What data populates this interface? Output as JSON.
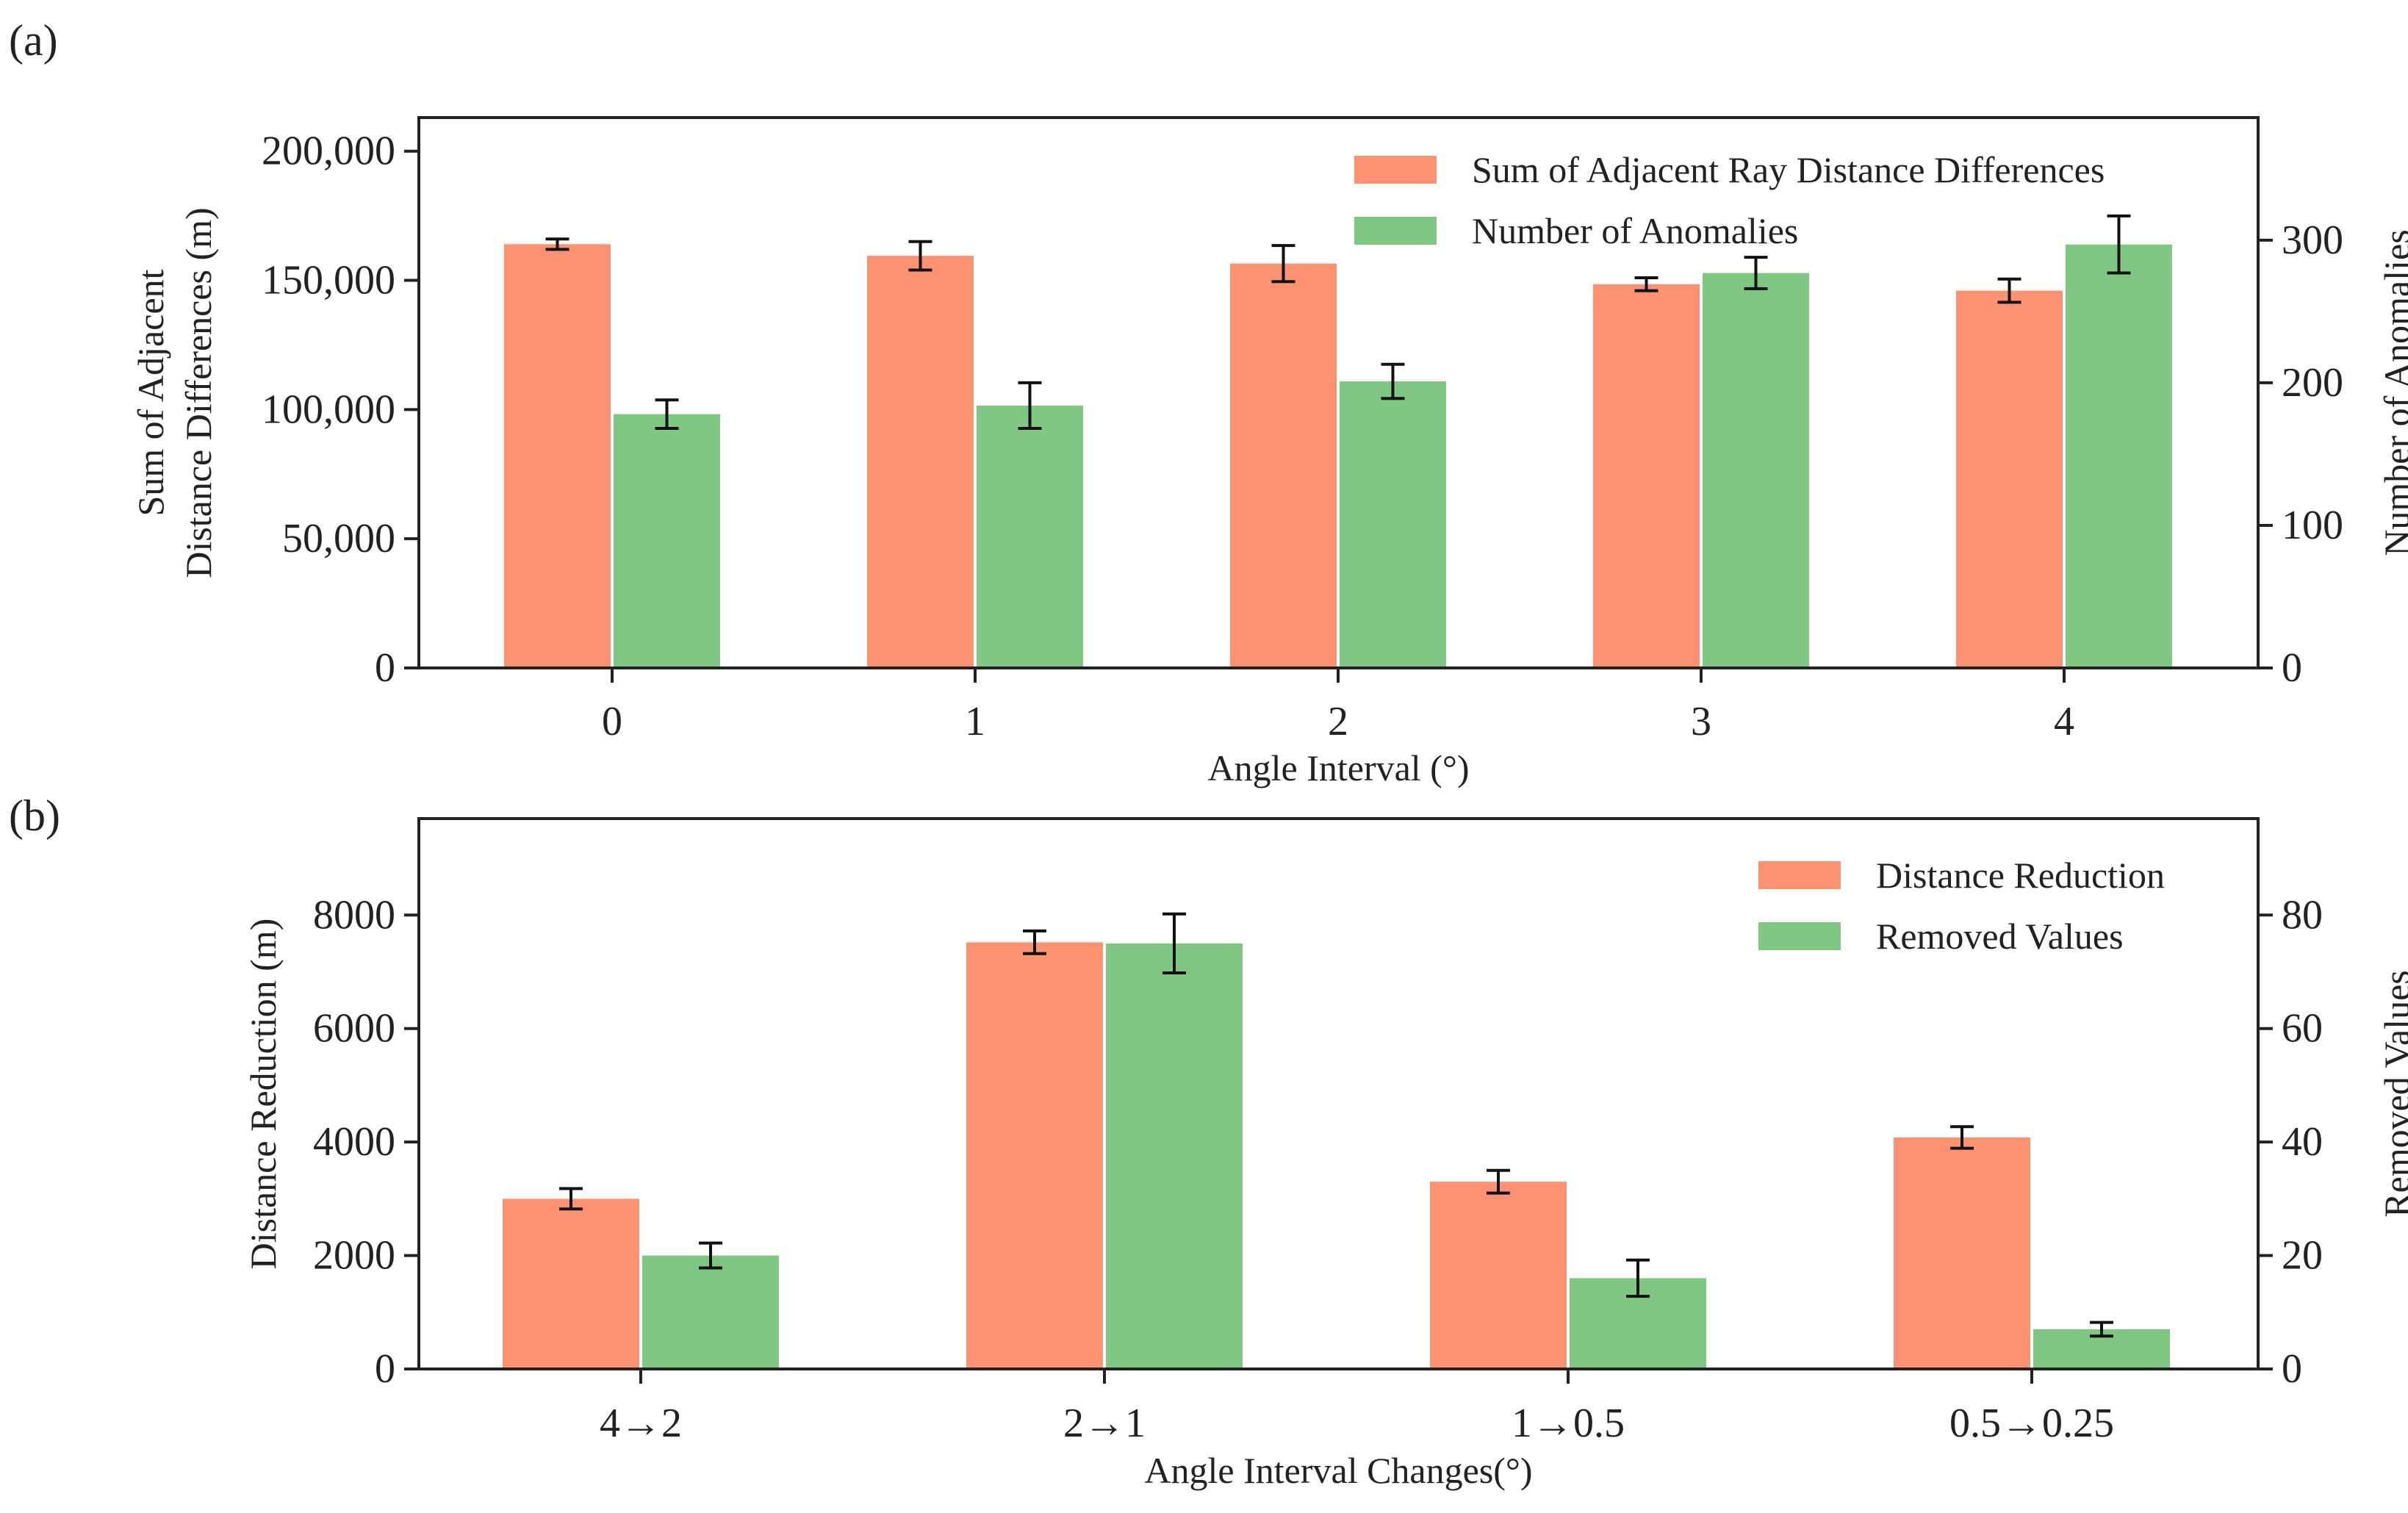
{
  "colors": {
    "series_a": "#fc9272",
    "series_b": "#81c784",
    "axis": "#222222"
  },
  "chart_data": [
    {
      "panel_label": "(a)",
      "type": "bar",
      "title": "",
      "categories": [
        "0",
        "1",
        "2",
        "3",
        "4"
      ],
      "xlabel": "Angle Interval (°)",
      "ylabel_lines": [
        "Sum of Adjacent",
        "Distance Differences (m)"
      ],
      "y2label": "Number of Anomalies",
      "ylim": [
        0,
        213000
      ],
      "y2lim": [
        0,
        386
      ],
      "yticks": [
        0,
        50000,
        100000,
        150000,
        200000
      ],
      "ytick_labels": [
        "0",
        "50,000",
        "100,000",
        "150,000",
        "200,000"
      ],
      "y2ticks": [
        0,
        100,
        200,
        300
      ],
      "y2tick_labels": [
        "0",
        "100",
        "200",
        "300"
      ],
      "legend_position": "top-right",
      "series": [
        {
          "name": "Sum of Adjacent Ray Distance Differences",
          "axis": "left",
          "color": "#fc9272",
          "values": [
            164000,
            159500,
            156500,
            148500,
            146000
          ],
          "errors": [
            2000,
            5500,
            7000,
            2500,
            4500
          ]
        },
        {
          "name": "Number of Anomalies",
          "axis": "right",
          "color": "#81c784",
          "values": [
            178,
            184,
            201,
            277,
            297
          ],
          "errors": [
            10,
            16,
            12,
            11,
            20
          ]
        }
      ]
    },
    {
      "panel_label": "(b)",
      "type": "bar",
      "title": "",
      "categories": [
        "4→2",
        "2→1",
        "1→0.5",
        "0.5→0.25"
      ],
      "xlabel": "Angle Interval Changes(°)",
      "ylabel_lines": [
        "Distance Reduction (m)"
      ],
      "y2label": "Removed Values",
      "ylim": [
        0,
        9700
      ],
      "y2lim": [
        0,
        97
      ],
      "yticks": [
        0,
        2000,
        4000,
        6000,
        8000
      ],
      "ytick_labels": [
        "0",
        "2000",
        "4000",
        "6000",
        "8000"
      ],
      "y2ticks": [
        0,
        20,
        40,
        60,
        80
      ],
      "y2tick_labels": [
        "0",
        "20",
        "40",
        "60",
        "80"
      ],
      "legend_position": "top-right",
      "series": [
        {
          "name": "Distance Reduction",
          "axis": "left",
          "color": "#fc9272",
          "values": [
            3000,
            7520,
            3300,
            4080
          ],
          "errors": [
            180,
            200,
            200,
            190
          ]
        },
        {
          "name": "Removed Values",
          "axis": "right",
          "color": "#81c784",
          "values": [
            20,
            75,
            16,
            7
          ],
          "errors": [
            2.2,
            5.2,
            3.2,
            1.2
          ]
        }
      ]
    }
  ]
}
